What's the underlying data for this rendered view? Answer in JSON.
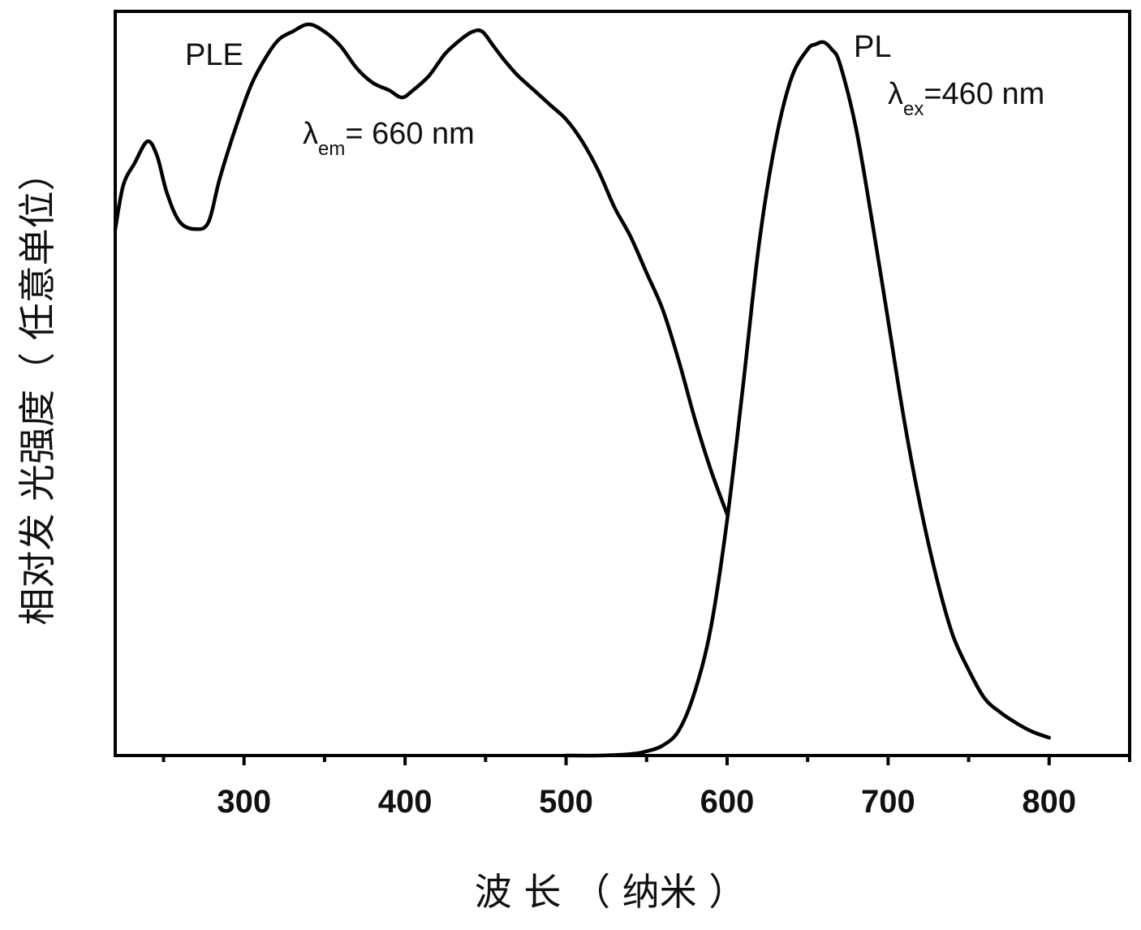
{
  "chart_data": {
    "type": "line",
    "title": "",
    "xlabel": "波 长 （ 纳米 ）",
    "ylabel": "相对发 光强度（ 任意单位）",
    "xlim": [
      220,
      850
    ],
    "ylim": [
      0,
      1.0
    ],
    "x_ticks": [
      300,
      400,
      500,
      600,
      700,
      800
    ],
    "x_ticks_minor": [
      250,
      350,
      450,
      550,
      650,
      750,
      850
    ],
    "grid": false,
    "legend": "none",
    "series": [
      {
        "name": "PLE",
        "color": "#000000",
        "x": [
          220,
          225,
          232,
          240,
          246,
          252,
          260,
          270,
          278,
          285,
          295,
          305,
          315,
          322,
          330,
          340,
          350,
          360,
          370,
          380,
          390,
          398,
          405,
          415,
          425,
          435,
          442,
          448,
          455,
          462,
          470,
          480,
          490,
          500,
          510,
          520,
          530,
          540,
          550,
          560,
          570,
          580,
          590,
          600
        ],
        "y": [
          0.72,
          0.78,
          0.81,
          0.84,
          0.82,
          0.77,
          0.73,
          0.72,
          0.73,
          0.79,
          0.86,
          0.92,
          0.96,
          0.98,
          0.99,
          1.0,
          0.99,
          0.97,
          0.94,
          0.92,
          0.91,
          0.9,
          0.91,
          0.93,
          0.96,
          0.98,
          0.99,
          0.99,
          0.97,
          0.95,
          0.93,
          0.91,
          0.89,
          0.87,
          0.84,
          0.8,
          0.75,
          0.71,
          0.66,
          0.61,
          0.54,
          0.46,
          0.39,
          0.33
        ]
      },
      {
        "name": "PL",
        "color": "#000000",
        "x": [
          500,
          520,
          540,
          550,
          560,
          570,
          580,
          590,
          600,
          610,
          620,
          630,
          640,
          650,
          655,
          660,
          665,
          670,
          680,
          690,
          700,
          710,
          720,
          730,
          740,
          750,
          760,
          770,
          780,
          790,
          800
        ],
        "y": [
          0.0,
          0.0,
          0.002,
          0.006,
          0.014,
          0.035,
          0.09,
          0.18,
          0.33,
          0.52,
          0.72,
          0.86,
          0.95,
          0.99,
          0.997,
          1.0,
          0.99,
          0.97,
          0.88,
          0.75,
          0.61,
          0.47,
          0.35,
          0.25,
          0.17,
          0.12,
          0.08,
          0.06,
          0.045,
          0.033,
          0.025
        ]
      }
    ],
    "annotations": [
      {
        "text": "PLE",
        "series": "PLE"
      },
      {
        "symbol": "λ",
        "sub": "em",
        "text": "= 660 nm",
        "series": "PLE"
      },
      {
        "text": "PL",
        "series": "PL"
      },
      {
        "symbol": "λ",
        "sub": "ex",
        "text": "=460 nm",
        "series": "PL"
      }
    ]
  }
}
